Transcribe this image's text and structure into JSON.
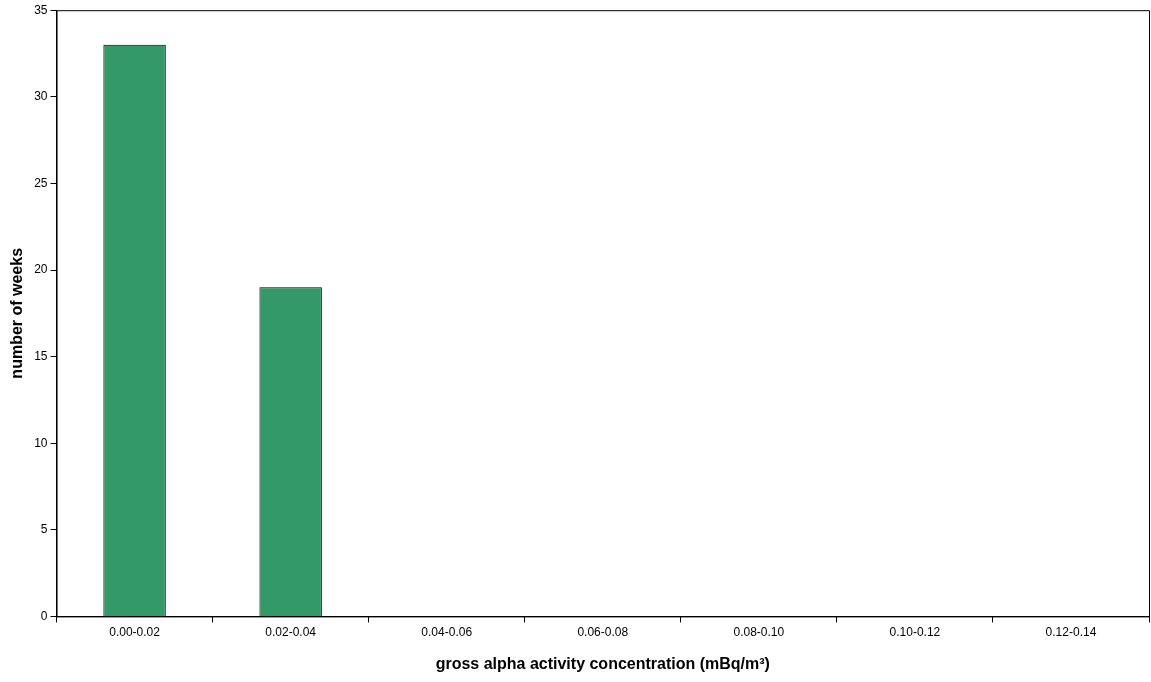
{
  "chart_data": {
    "type": "bar",
    "xlabel": "gross alpha activity concentration (mBq/m³)",
    "ylabel": "number of weeks",
    "categories": [
      "0.00-0.02",
      "0.02-0.04",
      "0.04-0.06",
      "0.06-0.08",
      "0.08-0.10",
      "0.10-0.12",
      "0.12-0.14"
    ],
    "values": [
      33,
      19,
      0,
      0,
      0,
      0,
      0
    ],
    "color": "#339966",
    "ylim": [
      0,
      35
    ],
    "yticks": [
      0,
      5,
      10,
      15,
      20,
      25,
      30,
      35
    ],
    "grid": false,
    "legend": false
  }
}
